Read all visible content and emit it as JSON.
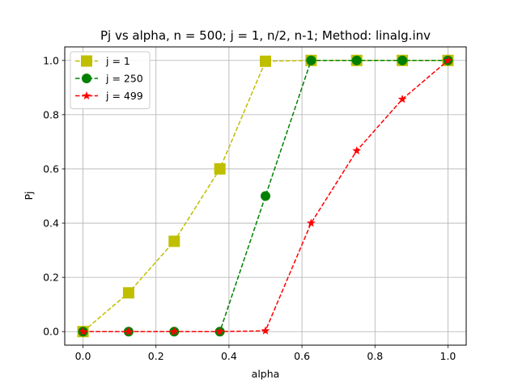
{
  "chart_data": {
    "type": "line",
    "title": "Pj vs alpha, n = 500; j = 1, n/2, n-1; Method: linalg.inv",
    "xlabel": "alpha",
    "ylabel": "Pj",
    "xlim": [
      -0.05,
      1.05
    ],
    "ylim": [
      -0.05,
      1.05
    ],
    "x_ticks": [
      0.0,
      0.2,
      0.4,
      0.6,
      0.8,
      1.0
    ],
    "y_ticks": [
      0.0,
      0.2,
      0.4,
      0.6,
      0.8,
      1.0
    ],
    "x_tick_labels": [
      "0.0",
      "0.2",
      "0.4",
      "0.6",
      "0.8",
      "1.0"
    ],
    "y_tick_labels": [
      "0.0",
      "0.2",
      "0.4",
      "0.6",
      "0.8",
      "1.0"
    ],
    "grid": true,
    "legend_position": "top-left",
    "x": [
      0.0,
      0.125,
      0.25,
      0.375,
      0.5,
      0.625,
      0.75,
      0.875,
      1.0
    ],
    "series": [
      {
        "name": "j = 1",
        "values": [
          0.0,
          0.143,
          0.333,
          0.6,
          0.997,
          1.0,
          1.0,
          1.0,
          1.0
        ],
        "color": "#bfbf00",
        "marker": "square",
        "line": "dashed"
      },
      {
        "name": "j = 250",
        "values": [
          0.0,
          0.0,
          0.0,
          0.0,
          0.5,
          1.0,
          1.0,
          1.0,
          1.0
        ],
        "color": "#008000",
        "marker": "circle",
        "line": "dashed"
      },
      {
        "name": "j = 499",
        "values": [
          0.0,
          0.0,
          0.0,
          0.0,
          0.003,
          0.4,
          0.667,
          0.857,
          1.0
        ],
        "color": "#ff0000",
        "marker": "star",
        "line": "dashed"
      }
    ]
  }
}
